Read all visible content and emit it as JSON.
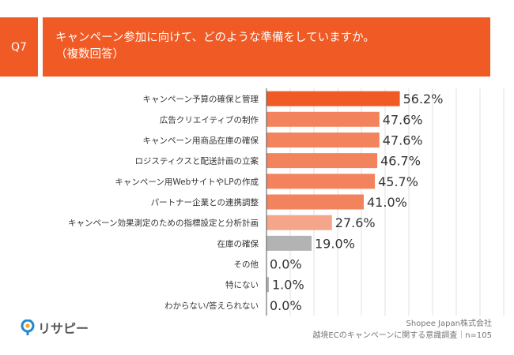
{
  "header": {
    "question_label": "Q7",
    "title_line1": "キャンペーン参加に向けて、どのような準備をしていますか。",
    "title_line2": "（複数回答）"
  },
  "colors": {
    "accent": "#F05A24",
    "bar_top": "#F05A24",
    "bar_mid": "#F3835C",
    "bar_light": "#F5A68A",
    "bar_gray": "#B3B3B3"
  },
  "chart_data": {
    "type": "bar",
    "orientation": "horizontal",
    "title": "キャンペーン参加に向けて、どのような準備をしていますか。（複数回答）",
    "categories": [
      "キャンペーン予算の確保と管理",
      "広告クリエイティブの制作",
      "キャンペーン用商品在庫の確保",
      "ロジスティクスと配送計画の立案",
      "キャンペーン用WebサイトやLPの作成",
      "パートナー企業との連携調整",
      "キャンペーン効果測定のための指標設定と分析計画",
      "在庫の確保",
      "その他",
      "特にない",
      "わからない/答えられない"
    ],
    "values": [
      56.2,
      47.6,
      47.6,
      46.7,
      45.7,
      41.0,
      27.6,
      19.0,
      0.0,
      1.0,
      0.0
    ],
    "value_labels": [
      "56.2%",
      "47.6%",
      "47.6%",
      "46.7%",
      "45.7%",
      "41.0%",
      "27.6%",
      "19.0%",
      "0.0%",
      "1.0%",
      "0.0%"
    ],
    "bar_color_keys": [
      "bar_top",
      "bar_mid",
      "bar_mid",
      "bar_mid",
      "bar_mid",
      "bar_mid",
      "bar_light",
      "bar_gray",
      "bar_gray",
      "bar_gray",
      "bar_gray"
    ],
    "xlim": [
      0,
      100
    ],
    "grid": true,
    "legend": "none"
  },
  "footer": {
    "company": "Shopee Japan株式会社",
    "survey": "越境ECのキャンペーンに関する意識調査｜n=105",
    "logo_text": "リサピー"
  }
}
